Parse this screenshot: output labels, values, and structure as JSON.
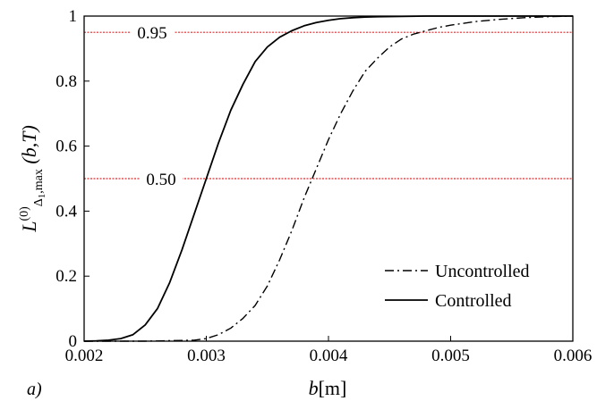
{
  "panel_label": "a)",
  "chart_data": {
    "type": "line",
    "xlabel_var": "b",
    "xlabel_unit": "[m]",
    "ylabel_main": "L",
    "ylabel_sup": "(0)",
    "ylabel_sub": "Δ",
    "ylabel_subsub": "1",
    "ylabel_sub2": ",max",
    "ylabel_args": " (b,T)",
    "xlim": [
      0.002,
      0.006
    ],
    "ylim": [
      0,
      1
    ],
    "x_ticks": [
      {
        "value": 0.002,
        "label": "0.002"
      },
      {
        "value": 0.003,
        "label": "0.003"
      },
      {
        "value": 0.004,
        "label": "0.004"
      },
      {
        "value": 0.005,
        "label": "0.005"
      },
      {
        "value": 0.006,
        "label": "0.006"
      }
    ],
    "y_ticks": [
      {
        "value": 0,
        "label": "0"
      },
      {
        "value": 0.2,
        "label": "0.2"
      },
      {
        "value": 0.4,
        "label": "0.4"
      },
      {
        "value": 0.6,
        "label": "0.6"
      },
      {
        "value": 0.8,
        "label": "0.8"
      },
      {
        "value": 1,
        "label": "1"
      }
    ],
    "reference_lines": [
      {
        "y": 0.95,
        "label": "0.95",
        "color": "#e8262a"
      },
      {
        "y": 0.5,
        "label": "0.50",
        "color": "#e8262a"
      }
    ],
    "legend_position": "bottom-right",
    "series": [
      {
        "name": "Uncontrolled",
        "style": "dashdot",
        "color": "#000000",
        "x": [
          0.002,
          0.0025,
          0.0029,
          0.003,
          0.0031,
          0.0032,
          0.0033,
          0.0034,
          0.0035,
          0.0036,
          0.0037,
          0.0038,
          0.0039,
          0.004,
          0.0041,
          0.0042,
          0.0043,
          0.0044,
          0.0045,
          0.0046,
          0.0047,
          0.0048,
          0.0049,
          0.005,
          0.0052,
          0.0054,
          0.0056,
          0.0058,
          0.006
        ],
        "y": [
          0.0,
          0.0,
          0.003,
          0.008,
          0.02,
          0.04,
          0.07,
          0.11,
          0.17,
          0.25,
          0.34,
          0.44,
          0.53,
          0.62,
          0.7,
          0.77,
          0.83,
          0.87,
          0.905,
          0.93,
          0.945,
          0.955,
          0.965,
          0.972,
          0.983,
          0.99,
          0.995,
          0.998,
          1.0
        ]
      },
      {
        "name": "Controlled",
        "style": "solid",
        "color": "#000000",
        "x": [
          0.002,
          0.0021,
          0.0022,
          0.0023,
          0.0024,
          0.0025,
          0.0026,
          0.0027,
          0.0028,
          0.0029,
          0.003,
          0.0031,
          0.0032,
          0.0033,
          0.0034,
          0.0035,
          0.0036,
          0.0037,
          0.0038,
          0.0039,
          0.004,
          0.0041,
          0.0042,
          0.0043,
          0.0044,
          0.0046,
          0.0048,
          0.005,
          0.0055,
          0.006
        ],
        "y": [
          0.0,
          0.001,
          0.003,
          0.008,
          0.02,
          0.05,
          0.1,
          0.18,
          0.28,
          0.39,
          0.5,
          0.61,
          0.71,
          0.79,
          0.86,
          0.905,
          0.935,
          0.955,
          0.97,
          0.98,
          0.987,
          0.992,
          0.995,
          0.997,
          0.998,
          0.999,
          1.0,
          1.0,
          1.0,
          1.0
        ]
      }
    ]
  }
}
